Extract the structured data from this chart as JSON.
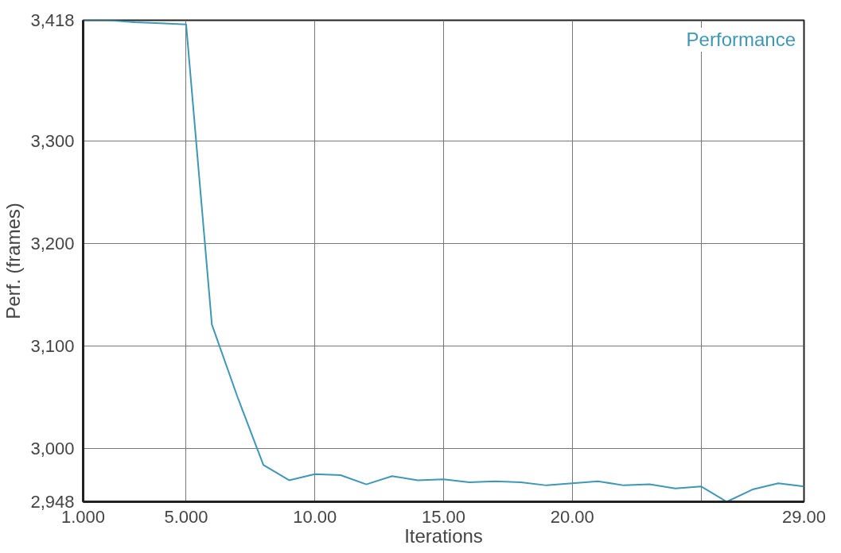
{
  "chart_data": {
    "type": "line",
    "xlabel": "Iterations",
    "ylabel": "Perf. (frames)",
    "x": [
      1,
      2,
      3,
      4,
      5,
      6,
      7,
      8,
      9,
      10,
      11,
      12,
      13,
      14,
      15,
      16,
      17,
      18,
      19,
      20,
      21,
      22,
      23,
      24,
      25,
      26,
      27,
      28,
      29
    ],
    "series": [
      {
        "name": "Performance",
        "color": "#3f97b7",
        "values": [
          3418,
          3418,
          3416,
          3415,
          3414,
          3121,
          3050,
          2984,
          2969,
          2975,
          2974,
          2965,
          2973,
          2969,
          2970,
          2967,
          2968,
          2967,
          2964,
          2966,
          2968,
          2964,
          2965,
          2961,
          2963,
          2948,
          2960,
          2966,
          2963
        ]
      }
    ],
    "xlim": [
      1,
      29
    ],
    "xticks": [
      {
        "value": 1,
        "label": "1.000"
      },
      {
        "value": 5,
        "label": "5.000"
      },
      {
        "value": 10,
        "label": "10.00"
      },
      {
        "value": 15,
        "label": "15.00"
      },
      {
        "value": 20,
        "label": "20.00"
      },
      {
        "value": 25,
        "label": null
      },
      {
        "value": 29,
        "label": "29.00"
      }
    ],
    "ylim": [
      2948,
      3418
    ],
    "yticks": [
      {
        "value": 2948,
        "label": "2,948"
      },
      {
        "value": 3000,
        "label": "3,000"
      },
      {
        "value": 3100,
        "label": "3,100"
      },
      {
        "value": 3200,
        "label": "3,200"
      },
      {
        "value": 3300,
        "label": "3,300"
      },
      {
        "value": 3418,
        "label": "3,418"
      }
    ],
    "grid": true,
    "legend": "top right",
    "line_style": "solid",
    "marker": "none"
  }
}
